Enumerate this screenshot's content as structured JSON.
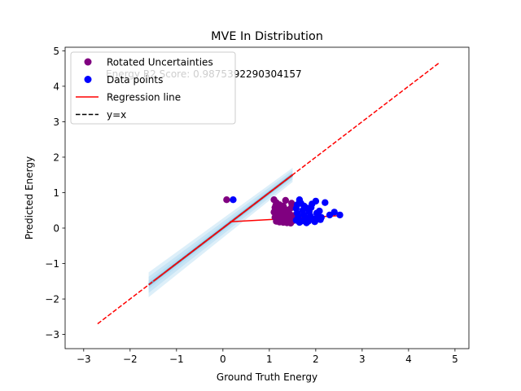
{
  "chart_data": {
    "type": "scatter",
    "title": "MVE In Distribution",
    "xlabel": "Ground Truth Energy",
    "ylabel": "Predicted Energy",
    "xlim": [
      -3.4,
      5.3
    ],
    "ylim": [
      -3.4,
      5.1
    ],
    "xticks": [
      -3,
      -2,
      -1,
      0,
      1,
      2,
      3,
      4,
      5
    ],
    "yticks": [
      -3,
      -2,
      -1,
      0,
      1,
      2,
      3,
      4,
      5
    ],
    "xtick_labels": [
      "−3",
      "−2",
      "−1",
      "0",
      "1",
      "2",
      "3",
      "4",
      "5"
    ],
    "ytick_labels": [
      "−3",
      "−2",
      "−1",
      "0",
      "1",
      "2",
      "3",
      "4",
      "5"
    ],
    "grid": false,
    "legend_position": "top-left",
    "annotation": "Energy R2 Score: 0.9875392290304157",
    "colors": {
      "rotated_uncertainties": "#800080",
      "data_points": "#0000ff",
      "regression_line": "#ff0000",
      "identity_line": "#000000",
      "uncertainty_band": "#9fd2ef"
    },
    "legend": [
      {
        "label": "Rotated Uncertainties",
        "kind": "dot",
        "color": "#800080"
      },
      {
        "label": "Data points",
        "kind": "dot",
        "color": "#0000ff"
      },
      {
        "label": "Regression line",
        "kind": "solid",
        "color": "#ff0000"
      },
      {
        "label": "y=x",
        "kind": "dashed",
        "color": "#000000"
      }
    ],
    "series": [
      {
        "name": "Rotated Uncertainties",
        "kind": "scatter",
        "color": "#800080",
        "points": [
          [
            0.08,
            0.8
          ],
          [
            1.1,
            0.8
          ],
          [
            1.15,
            0.72
          ],
          [
            1.22,
            0.66
          ],
          [
            1.3,
            0.62
          ],
          [
            1.12,
            0.58
          ],
          [
            1.18,
            0.54
          ],
          [
            1.25,
            0.5
          ],
          [
            1.32,
            0.47
          ],
          [
            1.4,
            0.44
          ],
          [
            1.1,
            0.45
          ],
          [
            1.17,
            0.41
          ],
          [
            1.24,
            0.38
          ],
          [
            1.31,
            0.35
          ],
          [
            1.38,
            0.33
          ],
          [
            1.45,
            0.31
          ],
          [
            1.12,
            0.3
          ],
          [
            1.2,
            0.27
          ],
          [
            1.28,
            0.25
          ],
          [
            1.35,
            0.24
          ],
          [
            1.42,
            0.22
          ],
          [
            1.5,
            0.2
          ],
          [
            1.15,
            0.19
          ],
          [
            1.22,
            0.17
          ],
          [
            1.3,
            0.16
          ],
          [
            1.38,
            0.15
          ],
          [
            1.46,
            0.14
          ],
          [
            1.52,
            0.6
          ],
          [
            1.48,
            0.7
          ],
          [
            1.35,
            0.78
          ],
          [
            1.26,
            0.28
          ],
          [
            1.44,
            0.4
          ],
          [
            1.14,
            0.64
          ],
          [
            1.36,
            0.52
          ],
          [
            1.55,
            0.36
          ],
          [
            1.47,
            0.57
          ]
        ]
      },
      {
        "name": "Data points",
        "kind": "scatter",
        "color": "#0000ff",
        "points": [
          [
            0.22,
            0.8
          ],
          [
            1.65,
            0.8
          ],
          [
            2.0,
            0.76
          ],
          [
            2.2,
            0.72
          ],
          [
            1.6,
            0.66
          ],
          [
            1.75,
            0.62
          ],
          [
            1.9,
            0.58
          ],
          [
            1.58,
            0.55
          ],
          [
            1.72,
            0.5
          ],
          [
            1.86,
            0.46
          ],
          [
            2.02,
            0.42
          ],
          [
            1.6,
            0.42
          ],
          [
            1.74,
            0.38
          ],
          [
            1.88,
            0.35
          ],
          [
            2.05,
            0.33
          ],
          [
            2.3,
            0.37
          ],
          [
            2.4,
            0.45
          ],
          [
            2.52,
            0.37
          ],
          [
            1.62,
            0.3
          ],
          [
            1.78,
            0.27
          ],
          [
            1.94,
            0.25
          ],
          [
            2.1,
            0.24
          ],
          [
            1.58,
            0.22
          ],
          [
            1.7,
            0.2
          ],
          [
            1.84,
            0.19
          ],
          [
            1.98,
            0.18
          ],
          [
            1.65,
            0.16
          ],
          [
            1.8,
            0.15
          ],
          [
            1.95,
            0.26
          ],
          [
            2.12,
            0.3
          ],
          [
            1.68,
            0.7
          ],
          [
            1.82,
            0.56
          ],
          [
            2.08,
            0.48
          ],
          [
            1.92,
            0.68
          ]
        ]
      },
      {
        "name": "Regression line",
        "kind": "line",
        "color": "#ff0000",
        "points": [
          [
            0.15,
            0.18
          ],
          [
            2.5,
            0.35
          ]
        ]
      },
      {
        "name": "y=x",
        "kind": "line",
        "color": "#000000",
        "dashed": true,
        "points": [
          [
            -1.2,
            -1.2
          ],
          [
            1.5,
            1.5
          ]
        ]
      },
      {
        "name": "Diagonal reference",
        "kind": "line",
        "color": "#ff0000",
        "dashed": true,
        "points": [
          [
            -2.7,
            -2.7
          ],
          [
            4.65,
            4.65
          ]
        ]
      },
      {
        "name": "Regression diagonal",
        "kind": "line",
        "color": "#ff0000",
        "points": [
          [
            -1.5,
            -1.5
          ],
          [
            1.5,
            1.5
          ]
        ]
      },
      {
        "name": "Uncertainty band",
        "kind": "band",
        "color": "#9fd2ef",
        "x": [
          -1.6,
          1.5
        ],
        "halfwidth_start": 0.35,
        "halfwidth_end": 0.2
      }
    ]
  }
}
